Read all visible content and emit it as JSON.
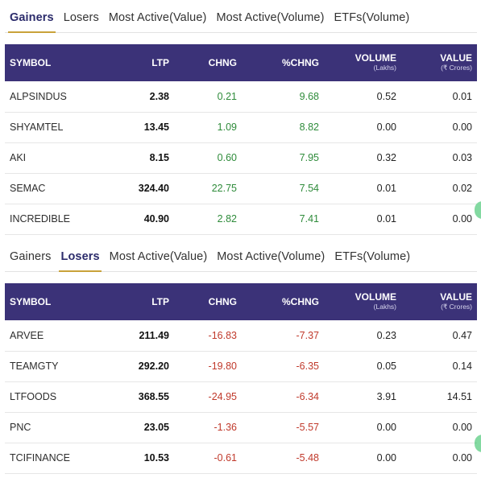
{
  "gainers_section": {
    "tabs": [
      "Gainers",
      "Losers",
      "Most Active(Value)",
      "Most Active(Volume)",
      "ETFs(Volume)"
    ],
    "active_tab": "Gainers",
    "headers": {
      "symbol": "SYMBOL",
      "ltp": "LTP",
      "chng": "CHNG",
      "pchng": "%CHNG",
      "volume": "VOLUME",
      "volume_unit": "(Lakhs)",
      "value": "VALUE",
      "value_unit": "(₹ Crores)"
    },
    "rows": [
      {
        "symbol": "ALPSINDUS",
        "ltp": "2.38",
        "chng": "0.21",
        "pchng": "9.68",
        "volume": "0.52",
        "value": "0.01"
      },
      {
        "symbol": "SHYAMTEL",
        "ltp": "13.45",
        "chng": "1.09",
        "pchng": "8.82",
        "volume": "0.00",
        "value": "0.00"
      },
      {
        "symbol": "AKI",
        "ltp": "8.15",
        "chng": "0.60",
        "pchng": "7.95",
        "volume": "0.32",
        "value": "0.03"
      },
      {
        "symbol": "SEMAC",
        "ltp": "324.40",
        "chng": "22.75",
        "pchng": "7.54",
        "volume": "0.01",
        "value": "0.02"
      },
      {
        "symbol": "INCREDIBLE",
        "ltp": "40.90",
        "chng": "2.82",
        "pchng": "7.41",
        "volume": "0.01",
        "value": "0.00"
      }
    ]
  },
  "losers_section": {
    "tabs": [
      "Gainers",
      "Losers",
      "Most Active(Value)",
      "Most Active(Volume)",
      "ETFs(Volume)"
    ],
    "active_tab": "Losers",
    "headers": {
      "symbol": "SYMBOL",
      "ltp": "LTP",
      "chng": "CHNG",
      "pchng": "%CHNG",
      "volume": "VOLUME",
      "volume_unit": "(Lakhs)",
      "value": "VALUE",
      "value_unit": "(₹ Crores)"
    },
    "rows": [
      {
        "symbol": "ARVEE",
        "ltp": "211.49",
        "chng": "-16.83",
        "pchng": "-7.37",
        "volume": "0.23",
        "value": "0.47"
      },
      {
        "symbol": "TEAMGTY",
        "ltp": "292.20",
        "chng": "-19.80",
        "pchng": "-6.35",
        "volume": "0.05",
        "value": "0.14"
      },
      {
        "symbol": "LTFOODS",
        "ltp": "368.55",
        "chng": "-24.95",
        "pchng": "-6.34",
        "volume": "3.91",
        "value": "14.51"
      },
      {
        "symbol": "PNC",
        "ltp": "23.05",
        "chng": "-1.36",
        "pchng": "-5.57",
        "volume": "0.00",
        "value": "0.00"
      },
      {
        "symbol": "TCIFINANCE",
        "ltp": "10.53",
        "chng": "-0.61",
        "pchng": "-5.48",
        "volume": "0.00",
        "value": "0.00"
      }
    ]
  },
  "colors": {
    "header_bg": "#3b3278",
    "positive": "#2e8b3a",
    "negative": "#c0392b",
    "tab_underline": "#c9a23a"
  }
}
